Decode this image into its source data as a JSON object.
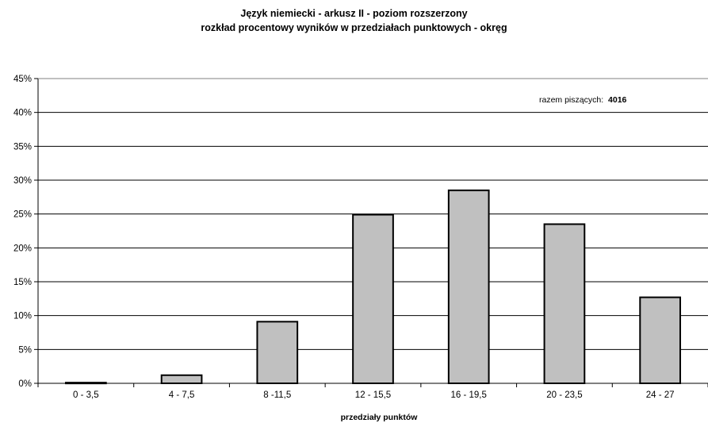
{
  "chart_data": {
    "type": "bar",
    "title": "Język niemiecki - arkusz II - poziom rozszerzony",
    "subtitle": "rozkład procentowy wyników w przedziałach punktowych - okręg",
    "xlabel": "przedziały punktów",
    "ylabel": "",
    "categories": [
      "0 - 3,5",
      "4 - 7,5",
      "8 -11,5",
      "12 - 15,5",
      "16 - 19,5",
      "20 - 23,5",
      "24 - 27"
    ],
    "values": [
      0.1,
      1.2,
      9.1,
      24.9,
      28.5,
      23.5,
      12.7
    ],
    "ylim": [
      0,
      45
    ],
    "yticks": [
      0,
      5,
      10,
      15,
      20,
      25,
      30,
      35,
      40,
      45
    ],
    "ytick_labels": [
      "0%",
      "5%",
      "10%",
      "15%",
      "20%",
      "25%",
      "30%",
      "35%",
      "40%",
      "45%"
    ],
    "grid": true,
    "bar_color": "#c0c0c0",
    "annotation": {
      "label": "razem piszących:",
      "value": "4016"
    }
  }
}
